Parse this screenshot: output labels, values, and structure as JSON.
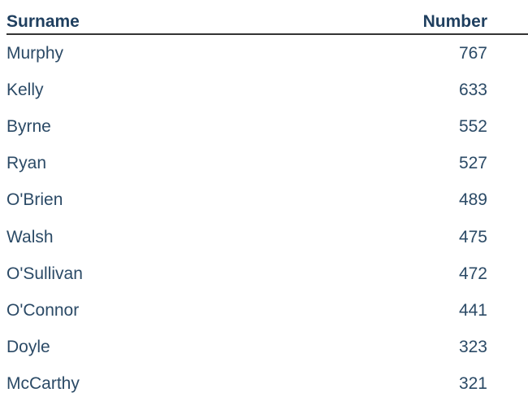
{
  "table": {
    "header": [
      "Surname",
      "Number"
    ],
    "rows": [
      [
        "Murphy",
        "767"
      ],
      [
        "Kelly",
        "633"
      ],
      [
        "Byrne",
        "552"
      ],
      [
        "Ryan",
        "527"
      ],
      [
        "O'Brien",
        "489"
      ],
      [
        "Walsh",
        "475"
      ],
      [
        "O'Sullivan",
        "472"
      ],
      [
        "O'Connor",
        "441"
      ],
      [
        "Doyle",
        "323"
      ],
      [
        "McCarthy",
        "321"
      ]
    ]
  }
}
